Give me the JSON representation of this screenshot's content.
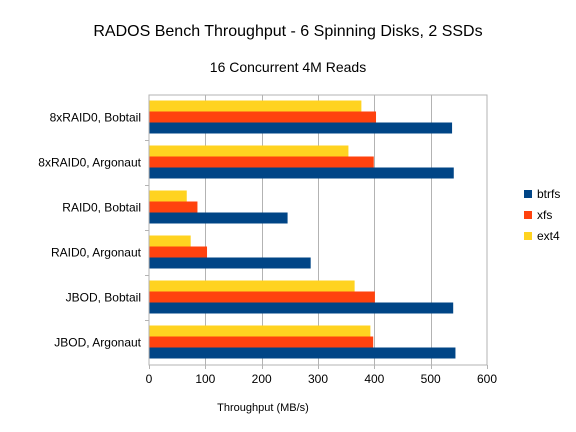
{
  "chart_data": {
    "type": "bar",
    "orientation": "horizontal",
    "title": "RADOS Bench Throughput - 6 Spinning Disks, 2 SSDs",
    "subtitle": "16 Concurrent 4M Reads",
    "xlabel": "Throughput (MB/s)",
    "ylabel": "",
    "xlim": [
      0,
      600
    ],
    "xticks": [
      0,
      100,
      200,
      300,
      400,
      500,
      600
    ],
    "grid": true,
    "legend_position": "right",
    "categories": [
      "8xRAID0, Bobtail",
      "8xRAID0, Argonaut",
      "RAID0, Bobtail",
      "RAID0, Argonaut",
      "JBOD, Bobtail",
      "JBOD, Argonaut"
    ],
    "series": [
      {
        "name": "btrfs",
        "color": "#004586",
        "values": [
          538,
          541,
          246,
          287,
          540,
          544
        ]
      },
      {
        "name": "xfs",
        "color": "#ff420e",
        "values": [
          403,
          399,
          86,
          103,
          401,
          398
        ]
      },
      {
        "name": "ext4",
        "color": "#ffd320",
        "values": [
          377,
          354,
          67,
          74,
          365,
          393
        ]
      }
    ]
  }
}
